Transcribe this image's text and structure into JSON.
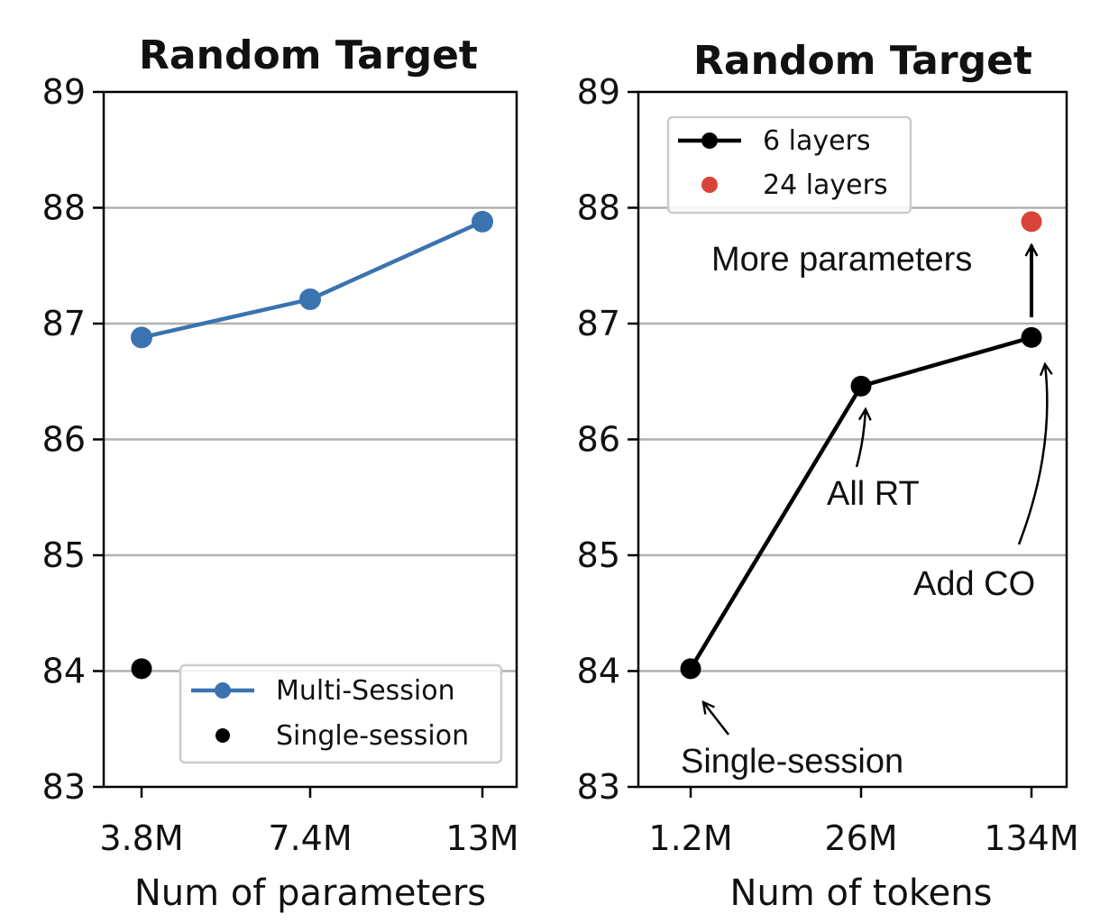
{
  "chart_data": [
    {
      "type": "line",
      "title": "Random Target",
      "xlabel": "Num of parameters",
      "ylabel": "",
      "categories": [
        "3.8M",
        "7.4M",
        "13M"
      ],
      "ylim": [
        83,
        89
      ],
      "yticks": [
        83,
        84,
        85,
        86,
        87,
        88,
        89
      ],
      "grid": "horizontal",
      "legend_position": "lower-right",
      "series": [
        {
          "name": "Multi-Session",
          "kind": "line",
          "color": "#3b73b0",
          "points": [
            {
              "x": "3.8M",
              "y": 86.88
            },
            {
              "x": "7.4M",
              "y": 87.21
            },
            {
              "x": "13M",
              "y": 87.88
            }
          ]
        },
        {
          "name": "Single-session",
          "kind": "scatter",
          "color": "#000000",
          "points": [
            {
              "x": "3.8M",
              "y": 84.02
            }
          ]
        }
      ]
    },
    {
      "type": "line",
      "title": "Random Target",
      "xlabel": "Num of tokens",
      "ylabel": "",
      "categories": [
        "1.2M",
        "26M",
        "134M"
      ],
      "ylim": [
        83,
        89
      ],
      "yticks": [
        83,
        84,
        85,
        86,
        87,
        88,
        89
      ],
      "grid": "horizontal",
      "legend_position": "upper-left",
      "series": [
        {
          "name": "6 layers",
          "kind": "line",
          "color": "#000000",
          "points": [
            {
              "x": "1.2M",
              "y": 84.02
            },
            {
              "x": "26M",
              "y": 86.46
            },
            {
              "x": "134M",
              "y": 86.88
            }
          ]
        },
        {
          "name": "24 layers",
          "kind": "scatter",
          "color": "#d9443a",
          "points": [
            {
              "x": "134M",
              "y": 87.88
            }
          ]
        }
      ],
      "annotations": [
        {
          "text": "Single-session",
          "x": "1.2M",
          "y": 84.02
        },
        {
          "text": "All RT",
          "x": "26M",
          "y": 86.46
        },
        {
          "text": "Add CO",
          "x": "134M",
          "y": 86.88
        },
        {
          "text": "More parameters",
          "x": "134M",
          "y": 87.88
        }
      ]
    }
  ]
}
